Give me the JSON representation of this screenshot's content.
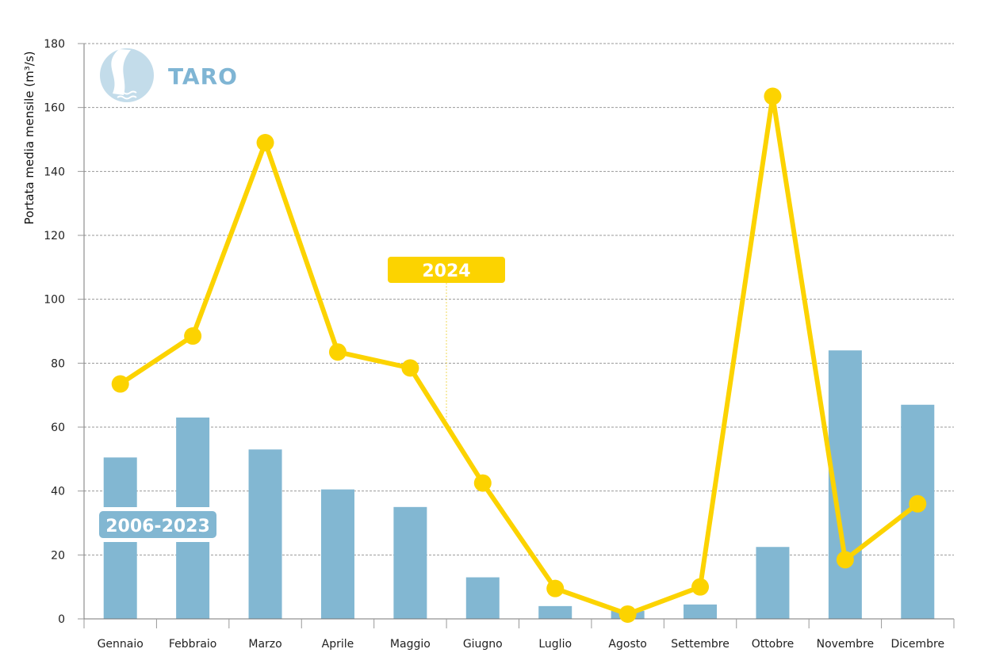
{
  "chart_data": {
    "type": "bar",
    "logo_text": "TARO",
    "ylabel": "Portata media mensile (m³/s)",
    "ylim": [
      0,
      180
    ],
    "yticks": [
      0,
      20,
      40,
      60,
      80,
      100,
      120,
      140,
      160,
      180
    ],
    "grid": true,
    "categories": [
      "Gennaio",
      "Febbraio",
      "Marzo",
      "Aprile",
      "Maggio",
      "Giugno",
      "Luglio",
      "Agosto",
      "Settembre",
      "Ottobre",
      "Novembre",
      "Dicembre"
    ],
    "series": [
      {
        "name": "2006-2023",
        "type": "bar",
        "color": "#82b7d2",
        "values": [
          50.5,
          63,
          53,
          40.5,
          35,
          13,
          4,
          2.5,
          4.5,
          22.5,
          84,
          67
        ]
      },
      {
        "name": "2024",
        "type": "line",
        "color": "#fcd300",
        "values": [
          73.5,
          88.5,
          149,
          83.5,
          78.5,
          42.5,
          9.5,
          1.5,
          10,
          163.5,
          18.5,
          36
        ]
      }
    ]
  }
}
